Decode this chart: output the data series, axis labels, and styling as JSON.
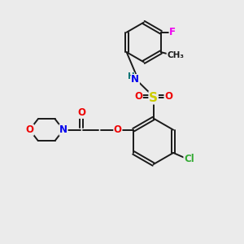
{
  "bg_color": "#ebebeb",
  "bond_color": "#1a1a1a",
  "bond_width": 1.4,
  "figsize": [
    3.0,
    3.0
  ],
  "dpi": 100,
  "atom_colors": {
    "N": "#0000ee",
    "O": "#ee0000",
    "S": "#cccc00",
    "Cl": "#33aa33",
    "F": "#ee00ee",
    "H": "#007070",
    "C": "#1a1a1a"
  },
  "font_size": 8.5,
  "xlim": [
    0,
    10
  ],
  "ylim": [
    0,
    10
  ]
}
